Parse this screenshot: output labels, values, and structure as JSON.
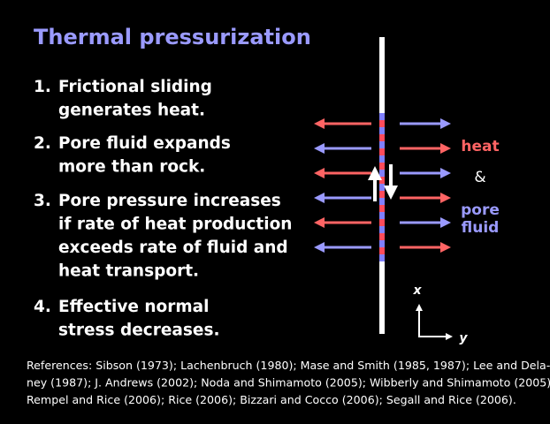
{
  "title": "Thermal pressurization",
  "items": [
    {
      "number": "1.",
      "lines": [
        "Frictional sliding",
        "generates heat."
      ]
    },
    {
      "number": "2.",
      "lines": [
        "Pore fluid expands",
        "more than rock."
      ]
    },
    {
      "number": "3.",
      "lines": [
        "Pore pressure increases",
        "if rate of heat production",
        "exceeds rate of fluid and",
        "heat transport."
      ]
    },
    {
      "number": "4.",
      "lines": [
        "Effective normal",
        "stress decreases."
      ]
    }
  ],
  "diagram": {
    "heat": "heat",
    "and": "&",
    "pore": "pore",
    "fluid": "fluid",
    "axis_x": "x",
    "axis_y": "y"
  },
  "references": [
    "References: Sibson (1973); Lachenbruch (1980); Mase and Smith (1985, 1987); Lee and Dela-",
    "ney (1987); J. Andrews (2002); Noda and Shimamoto (2005); Wibberly and Shimamoto (2005);",
    "Rempel and Rice (2006);  Rice (2006);  Bizzari and Cocco (2006); Segall and Rice (2006)."
  ]
}
